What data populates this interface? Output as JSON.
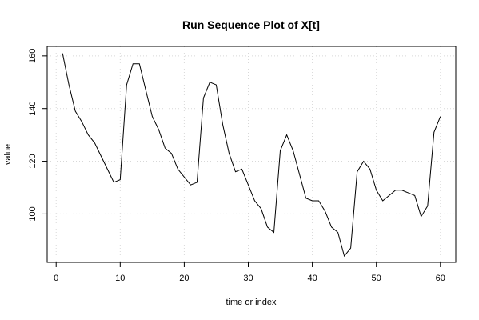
{
  "chart_data": {
    "type": "line",
    "title": "Run Sequence Plot of X[t]",
    "xlabel": "time or index",
    "ylabel": "value",
    "xlim": [
      -1.4,
      62.4
    ],
    "ylim": [
      81.6,
      163.6
    ],
    "x_ticks": [
      0,
      10,
      20,
      30,
      40,
      50,
      60
    ],
    "y_ticks": [
      100,
      120,
      140,
      160
    ],
    "grid": true,
    "series": [
      {
        "x": [
          1,
          2,
          3,
          4,
          5,
          6,
          7,
          8,
          9,
          10,
          11,
          12,
          13,
          14,
          15,
          16,
          17,
          18,
          19,
          20,
          21,
          22,
          23,
          24,
          25,
          26,
          27,
          28,
          29,
          30,
          31,
          32,
          33,
          34,
          35,
          36,
          37,
          38,
          39,
          40,
          41,
          42,
          43,
          44,
          45,
          46,
          47,
          48,
          49,
          50,
          51,
          52,
          53,
          54,
          55,
          56,
          57,
          58,
          59,
          60
        ],
        "values": [
          161,
          149,
          139,
          135,
          130,
          127,
          122,
          117,
          112,
          113,
          149,
          157,
          157,
          147,
          137,
          132,
          125,
          123,
          117,
          114,
          111,
          112,
          144,
          150,
          149,
          134,
          123,
          116,
          117,
          111,
          105,
          102,
          95,
          93,
          124,
          130,
          124,
          115,
          106,
          105,
          105,
          101,
          95,
          93,
          84,
          87,
          116,
          120,
          117,
          109,
          105,
          107,
          109,
          109,
          108,
          107,
          99,
          103,
          131,
          137
        ],
        "color": "#000000"
      }
    ]
  }
}
